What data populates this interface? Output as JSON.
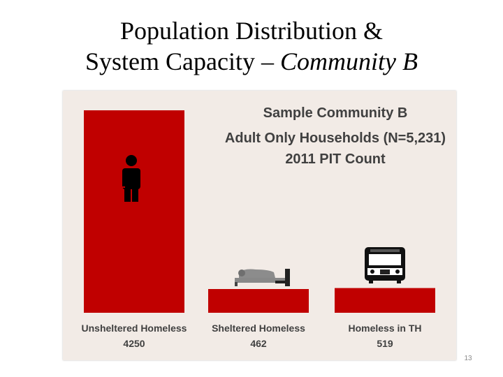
{
  "slide": {
    "title_line1": "Population Distribution &",
    "title_line2_plain": "System Capacity – ",
    "title_line2_italic": "Community B",
    "page_number": "13"
  },
  "colors": {
    "bar": "#c00000",
    "panel_bg": "#f2ebe6",
    "text": "#404040"
  },
  "icons": [
    "person-icon",
    "bed-icon",
    "bus-icon"
  ],
  "chart_data": {
    "type": "bar",
    "title": [
      "Sample Community B",
      "Adult Only Households (N=5,231)",
      "2011 PIT Count"
    ],
    "categories": [
      "Unsheltered Homeless",
      "Sheltered Homeless",
      "Homeless in TH"
    ],
    "values": [
      4250,
      462,
      519
    ],
    "value_labels": [
      "4250",
      "462",
      "519"
    ],
    "ylim": [
      0,
      4250
    ],
    "grid": false,
    "legend": "none"
  }
}
